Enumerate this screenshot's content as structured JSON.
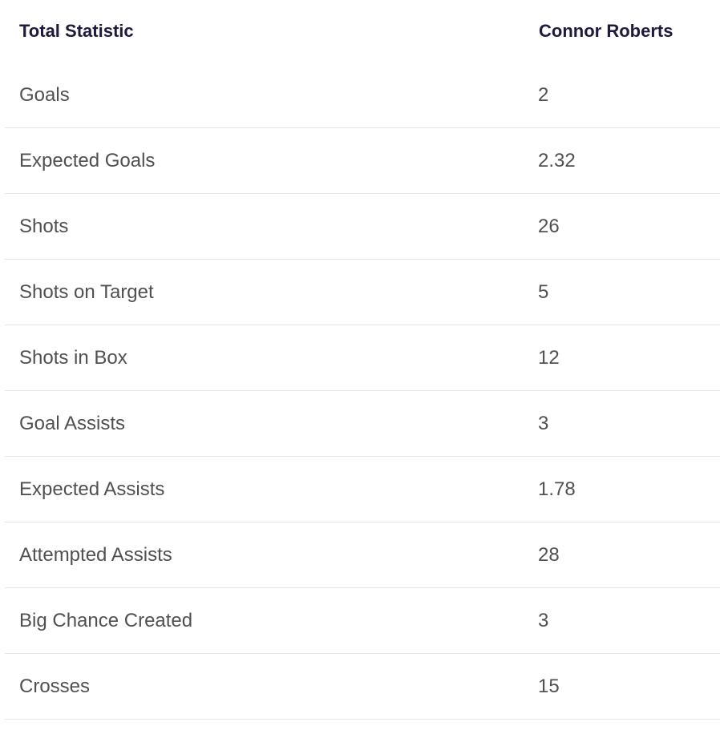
{
  "table": {
    "headers": {
      "statistic": "Total Statistic",
      "player": "Connor Roberts"
    },
    "rows": [
      {
        "label": "Goals",
        "value": "2"
      },
      {
        "label": "Expected Goals",
        "value": "2.32"
      },
      {
        "label": "Shots",
        "value": "26"
      },
      {
        "label": "Shots on Target",
        "value": "5"
      },
      {
        "label": "Shots in Box",
        "value": "12"
      },
      {
        "label": "Goal Assists",
        "value": "3"
      },
      {
        "label": "Expected Assists",
        "value": "1.78"
      },
      {
        "label": "Attempted Assists",
        "value": "28"
      },
      {
        "label": "Big Chance Created",
        "value": "3"
      },
      {
        "label": "Crosses",
        "value": "15"
      }
    ]
  },
  "colors": {
    "header_text": "#1f1a3d",
    "body_text": "#505050",
    "divider": "#e6e6e6"
  }
}
